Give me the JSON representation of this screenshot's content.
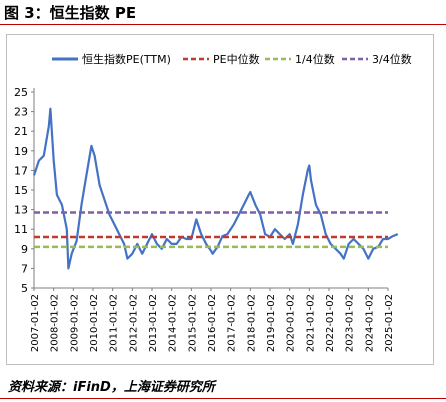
{
  "header": {
    "figure_title": "图 3：恒生指数 PE"
  },
  "footer": {
    "source": "资料来源：iFinD，上海证券研究所"
  },
  "colors": {
    "pe_line": "#4472c4",
    "median": "#c0392b",
    "q1": "#9bbb59",
    "q3": "#7f5fa8",
    "accent": "#c00000"
  },
  "chart_data": {
    "type": "line",
    "title": "",
    "xlabel": "",
    "ylabel": "",
    "ylim": [
      5,
      25
    ],
    "y_ticks": [
      5,
      7,
      9,
      11,
      13,
      15,
      17,
      19,
      21,
      23,
      25
    ],
    "x_tick_labels": [
      "2007-01-02",
      "2008-01-02",
      "2009-01-02",
      "2010-01-02",
      "2011-01-02",
      "2012-01-02",
      "2013-01-02",
      "2014-01-02",
      "2015-01-02",
      "2016-01-02",
      "2017-01-02",
      "2018-01-02",
      "2019-01-02",
      "2020-01-02",
      "2021-01-02",
      "2022-01-02",
      "2023-01-02",
      "2024-01-02",
      "2025-01-02"
    ],
    "grid": false,
    "legend_position": "top",
    "series": [
      {
        "name": "恒生指数PE(TTM)",
        "style": "solid",
        "x": [
          "2007-01",
          "2007-04",
          "2007-07",
          "2007-10",
          "2007-11",
          "2008-01",
          "2008-03",
          "2008-06",
          "2008-09",
          "2008-10",
          "2008-12",
          "2009-03",
          "2009-06",
          "2009-09",
          "2009-12",
          "2010-02",
          "2010-05",
          "2010-08",
          "2010-11",
          "2011-02",
          "2011-05",
          "2011-08",
          "2011-10",
          "2012-01",
          "2012-04",
          "2012-07",
          "2012-10",
          "2013-01",
          "2013-04",
          "2013-07",
          "2013-10",
          "2014-01",
          "2014-04",
          "2014-07",
          "2014-10",
          "2015-01",
          "2015-04",
          "2015-07",
          "2015-10",
          "2016-01",
          "2016-02",
          "2016-05",
          "2016-08",
          "2016-11",
          "2017-03",
          "2017-06",
          "2017-09",
          "2017-12",
          "2018-01",
          "2018-04",
          "2018-07",
          "2018-10",
          "2019-01",
          "2019-04",
          "2019-07",
          "2019-10",
          "2020-01",
          "2020-03",
          "2020-06",
          "2020-09",
          "2020-12",
          "2021-01",
          "2021-02",
          "2021-05",
          "2021-08",
          "2021-11",
          "2022-02",
          "2022-05",
          "2022-08",
          "2022-10",
          "2023-01",
          "2023-04",
          "2023-07",
          "2023-10",
          "2024-01",
          "2024-04",
          "2024-07",
          "2024-10",
          "2025-01",
          "2025-04",
          "2025-07"
        ],
        "values": [
          16.5,
          18.0,
          18.5,
          21.5,
          23.3,
          18.0,
          14.5,
          13.5,
          11.0,
          7.0,
          8.5,
          9.8,
          13.5,
          16.5,
          19.5,
          18.5,
          15.5,
          14.0,
          12.5,
          11.5,
          10.5,
          9.5,
          8.0,
          8.5,
          9.5,
          8.5,
          9.5,
          10.5,
          9.5,
          9.0,
          10.0,
          9.5,
          9.5,
          10.2,
          10.0,
          10.0,
          12.0,
          10.5,
          9.5,
          8.8,
          8.5,
          9.2,
          10.3,
          10.5,
          11.5,
          12.5,
          13.5,
          14.5,
          14.8,
          13.5,
          12.5,
          10.5,
          10.2,
          11.0,
          10.5,
          10.0,
          10.5,
          9.5,
          11.5,
          14.5,
          17.0,
          17.5,
          16.0,
          13.5,
          12.5,
          10.5,
          9.5,
          9.0,
          8.5,
          8.0,
          9.5,
          10.0,
          9.5,
          9.0,
          8.0,
          9.0,
          9.2,
          10.0,
          10.0,
          10.3,
          10.5
        ]
      },
      {
        "name": "PE中位数",
        "style": "dashed",
        "constant": 10.2
      },
      {
        "name": "1/4位数",
        "style": "dashed",
        "constant": 9.2
      },
      {
        "name": "3/4位数",
        "style": "dashed",
        "constant": 12.7
      }
    ]
  }
}
